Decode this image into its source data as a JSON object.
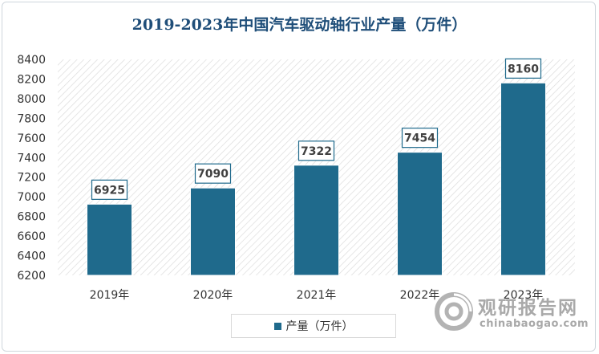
{
  "chart_data": {
    "type": "bar",
    "title": "2019-2023年中国汽车驱动轴行业产量（万件）",
    "categories": [
      "2019年",
      "2020年",
      "2021年",
      "2022年",
      "2023年"
    ],
    "series": [
      {
        "name": "产量（万件）",
        "values": [
          6925,
          7090,
          7322,
          7454,
          8160
        ]
      }
    ],
    "xlabel": "",
    "ylabel": "",
    "ylim": [
      6200,
      8400
    ],
    "yticks": [
      6200,
      6400,
      6600,
      6800,
      7000,
      7200,
      7400,
      7600,
      7800,
      8000,
      8200,
      8400
    ],
    "grid": false,
    "legend": "bottom",
    "colors": {
      "bar": "#1f6a8c",
      "label_border": "#1f6a8c",
      "title": "#1f4e79"
    }
  },
  "watermark": {
    "cn": "观研报告网",
    "en": "chinabaogao.com"
  }
}
